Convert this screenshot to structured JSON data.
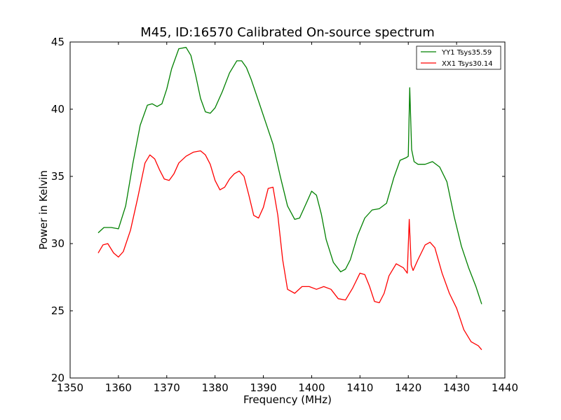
{
  "chart_data": {
    "type": "line",
    "title": "M45, ID:16570 Calibrated On-source spectrum",
    "xlabel": "Frequency (MHz)",
    "ylabel": "Power in Kelvin",
    "xlim": [
      1350,
      1440
    ],
    "ylim": [
      20,
      45
    ],
    "xticks": [
      1350,
      1360,
      1370,
      1380,
      1390,
      1400,
      1410,
      1420,
      1430,
      1440
    ],
    "yticks": [
      20,
      25,
      30,
      35,
      40,
      45
    ],
    "grid": false,
    "legend_position": "top-right",
    "series": [
      {
        "name": "YY1 Tsys35.59",
        "color": "#008000",
        "x": [
          1355.8,
          1357.0,
          1358.5,
          1360.0,
          1361.5,
          1363.0,
          1364.5,
          1366.0,
          1367.0,
          1368.0,
          1369.0,
          1370.0,
          1371.0,
          1372.5,
          1374.0,
          1375.0,
          1376.0,
          1377.0,
          1378.0,
          1379.0,
          1380.0,
          1381.5,
          1383.0,
          1384.5,
          1385.5,
          1386.5,
          1387.5,
          1389.0,
          1390.5,
          1392.0,
          1393.5,
          1395.0,
          1396.5,
          1397.5,
          1399.0,
          1400.0,
          1401.0,
          1402.0,
          1403.0,
          1404.5,
          1406.0,
          1407.0,
          1408.0,
          1409.5,
          1411.0,
          1412.5,
          1414.0,
          1415.5,
          1417.0,
          1418.3,
          1419.6,
          1420.0,
          1420.3,
          1420.7,
          1421.2,
          1422.0,
          1423.5,
          1425.0,
          1426.5,
          1428.0,
          1429.5,
          1431.0,
          1432.5,
          1434.0,
          1435.2
        ],
        "values": [
          30.8,
          31.2,
          31.2,
          31.1,
          32.8,
          36.0,
          38.8,
          40.3,
          40.4,
          40.2,
          40.4,
          41.5,
          43.0,
          44.5,
          44.6,
          44.0,
          42.5,
          40.8,
          39.8,
          39.7,
          40.1,
          41.3,
          42.7,
          43.6,
          43.6,
          43.1,
          42.2,
          40.6,
          39.0,
          37.4,
          35.0,
          32.8,
          31.8,
          31.9,
          33.1,
          33.9,
          33.6,
          32.2,
          30.3,
          28.6,
          27.9,
          28.1,
          28.8,
          30.6,
          31.9,
          32.5,
          32.6,
          33.0,
          34.9,
          36.2,
          36.4,
          36.5,
          41.6,
          37.0,
          36.1,
          35.9,
          35.9,
          36.1,
          35.7,
          34.6,
          32.0,
          29.8,
          28.2,
          26.8,
          25.5
        ]
      },
      {
        "name": "XX1 Tsys30.14",
        "color": "#ff0000",
        "x": [
          1355.8,
          1356.8,
          1357.8,
          1359.0,
          1360.0,
          1361.0,
          1362.5,
          1364.0,
          1365.5,
          1366.5,
          1367.5,
          1368.5,
          1369.5,
          1370.5,
          1371.5,
          1372.5,
          1374.0,
          1375.5,
          1377.0,
          1378.0,
          1379.0,
          1380.0,
          1381.0,
          1382.0,
          1383.0,
          1384.0,
          1385.0,
          1386.0,
          1387.0,
          1388.0,
          1389.0,
          1390.0,
          1391.0,
          1392.0,
          1393.0,
          1394.0,
          1395.0,
          1396.5,
          1398.0,
          1399.5,
          1401.0,
          1402.5,
          1404.0,
          1405.5,
          1407.0,
          1408.5,
          1410.0,
          1411.0,
          1412.0,
          1413.0,
          1414.0,
          1415.0,
          1416.0,
          1417.5,
          1419.0,
          1419.8,
          1420.2,
          1420.6,
          1421.0,
          1422.0,
          1423.5,
          1424.5,
          1425.5,
          1427.0,
          1428.5,
          1430.0,
          1431.5,
          1433.0,
          1434.5,
          1435.2
        ],
        "values": [
          29.3,
          29.9,
          30.0,
          29.3,
          29.0,
          29.4,
          31.0,
          33.4,
          36.0,
          36.6,
          36.3,
          35.5,
          34.8,
          34.7,
          35.2,
          36.0,
          36.5,
          36.8,
          36.9,
          36.6,
          35.9,
          34.7,
          34.0,
          34.2,
          34.8,
          35.2,
          35.4,
          35.0,
          33.6,
          32.1,
          31.9,
          32.7,
          34.1,
          34.2,
          32.1,
          28.8,
          26.6,
          26.3,
          26.8,
          26.8,
          26.6,
          26.8,
          26.6,
          25.9,
          25.8,
          26.7,
          27.8,
          27.7,
          26.8,
          25.7,
          25.6,
          26.3,
          27.6,
          28.5,
          28.2,
          27.8,
          31.8,
          28.4,
          28.0,
          28.8,
          29.9,
          30.1,
          29.7,
          27.8,
          26.3,
          25.2,
          23.6,
          22.7,
          22.4,
          22.1
        ]
      }
    ]
  }
}
